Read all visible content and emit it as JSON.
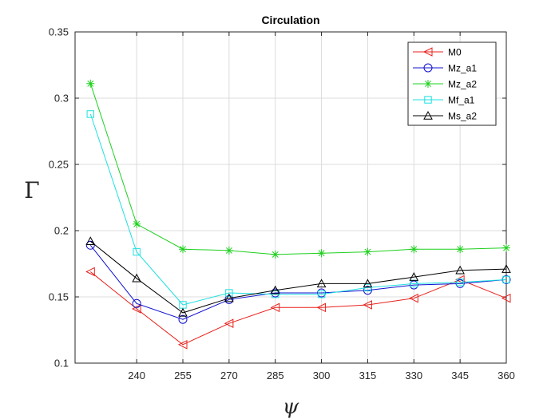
{
  "chart_data": {
    "type": "line",
    "title": "Circulation",
    "xlabel": "ψ",
    "ylabel": "Γ",
    "x": [
      225,
      240,
      255,
      270,
      285,
      300,
      315,
      330,
      345,
      360
    ],
    "xlim": [
      220,
      360
    ],
    "ylim": [
      0.1,
      0.35
    ],
    "xticks": [
      240,
      255,
      270,
      285,
      300,
      315,
      330,
      345,
      360
    ],
    "yticks": [
      0.1,
      0.15,
      0.2,
      0.25,
      0.3,
      0.35
    ],
    "ytick_labels": [
      "0.1",
      "0.15",
      "0.2",
      "0.25",
      "0.3",
      "0.35"
    ],
    "grid": true,
    "legend_position": "top-right",
    "series": [
      {
        "name": "M0",
        "color": "#e8201a",
        "marker": "triangle-left",
        "values": [
          0.169,
          0.141,
          0.114,
          0.13,
          0.142,
          0.142,
          0.144,
          0.149,
          0.163,
          0.149
        ]
      },
      {
        "name": "Mz_a1",
        "color": "#1010d0",
        "marker": "circle",
        "values": [
          0.189,
          0.145,
          0.133,
          0.148,
          0.153,
          0.153,
          0.155,
          0.159,
          0.16,
          0.163
        ]
      },
      {
        "name": "Mz_a2",
        "color": "#1ed01e",
        "marker": "asterisk",
        "values": [
          0.311,
          0.205,
          0.186,
          0.185,
          0.182,
          0.183,
          0.184,
          0.186,
          0.186,
          0.187
        ]
      },
      {
        "name": "Mf_a1",
        "color": "#1ee0e0",
        "marker": "square",
        "values": [
          0.288,
          0.184,
          0.144,
          0.153,
          0.152,
          0.152,
          0.157,
          0.16,
          0.161,
          0.163
        ]
      },
      {
        "name": "Ms_a2",
        "color": "#000000",
        "marker": "triangle-up",
        "values": [
          0.192,
          0.164,
          0.138,
          0.149,
          0.155,
          0.16,
          0.16,
          0.165,
          0.17,
          0.171
        ]
      }
    ]
  }
}
